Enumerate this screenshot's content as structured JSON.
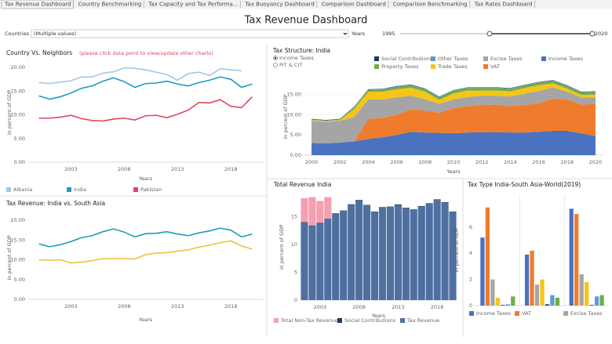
{
  "tabs": [
    "Tax Revenue Dashboard",
    "Country Benchmarking",
    "Tax Capacity and Tax Performa...",
    "Tax Buoyancy Dashboard",
    "Comparison Dashboard",
    "Comparison Benchmarking",
    "Tax Rates Dashboard"
  ],
  "header": {
    "title": "Tax Revenue Dashboard"
  },
  "filters": {
    "countries_label": "Countries",
    "countries_value": "(Multiple values)",
    "years_label": "Years",
    "years_range": [
      1995,
      2020
    ]
  },
  "chart_data": [
    {
      "type": "line",
      "title": "Country Vs. Neighbors",
      "subtitle": "(please click data point to view/update other charts)",
      "x": [
        2000,
        2001,
        2002,
        2003,
        2004,
        2005,
        2006,
        2007,
        2008,
        2009,
        2010,
        2011,
        2012,
        2013,
        2014,
        2015,
        2016,
        2017,
        2018,
        2019,
        2020
      ],
      "xlim": [
        1999,
        2021
      ],
      "xticks": [
        2003,
        2008,
        2013,
        2018
      ],
      "ylim": [
        0,
        21
      ],
      "yticks": [
        {
          "value": 0,
          "label": "0.00"
        },
        {
          "value": 5,
          "label": "5.00"
        },
        {
          "value": 10,
          "label": "10.00"
        },
        {
          "value": 15,
          "label": "15.00"
        },
        {
          "value": 20,
          "label": "20.00"
        }
      ],
      "xlabel": "Years",
      "ylabel": "in percent of GDP",
      "series": [
        {
          "name": "Albania",
          "color": "#9ecae1",
          "values": [
            16.8,
            16.6,
            16.9,
            17.2,
            18.0,
            18.0,
            18.8,
            19.1,
            19.9,
            19.8,
            19.5,
            19.0,
            18.5,
            17.3,
            18.7,
            19.0,
            18.3,
            19.7,
            19.5,
            19.3,
            null
          ]
        },
        {
          "name": "India",
          "color": "#1f9bbf",
          "values": [
            14.0,
            13.3,
            13.8,
            14.6,
            15.6,
            16.1,
            17.1,
            17.8,
            17.0,
            15.8,
            16.6,
            16.7,
            17.1,
            16.5,
            16.1,
            16.8,
            17.3,
            18.0,
            17.5,
            15.8,
            16.5
          ]
        },
        {
          "name": "Pakistan",
          "color": "#e0445e",
          "values": [
            9.3,
            9.3,
            9.5,
            9.9,
            9.2,
            8.8,
            8.7,
            9.1,
            9.3,
            8.9,
            9.8,
            9.9,
            9.4,
            10.1,
            11.0,
            12.6,
            12.5,
            13.2,
            11.8,
            11.5,
            13.8
          ]
        }
      ]
    },
    {
      "type": "line",
      "title": "Tax Revenue: India vs. South Asia",
      "x": [
        2000,
        2001,
        2002,
        2003,
        2004,
        2005,
        2006,
        2007,
        2008,
        2009,
        2010,
        2011,
        2012,
        2013,
        2014,
        2015,
        2016,
        2017,
        2018,
        2019,
        2020
      ],
      "xlim": [
        1999,
        2021
      ],
      "xticks": [
        2003,
        2008,
        2013,
        2018
      ],
      "ylim": [
        0,
        21
      ],
      "yticks": [
        {
          "value": 0,
          "label": "0.00"
        },
        {
          "value": 5,
          "label": "5.00"
        },
        {
          "value": 10,
          "label": "10.00"
        },
        {
          "value": 15,
          "label": "15.00"
        },
        {
          "value": 20,
          "label": "20.00"
        }
      ],
      "xlabel": "Years",
      "ylabel": "in percent of GDP",
      "series": [
        {
          "color": "#1f9bbf",
          "values": [
            14.0,
            13.3,
            13.8,
            14.6,
            15.6,
            16.1,
            17.1,
            17.8,
            17.0,
            15.8,
            16.6,
            16.7,
            17.1,
            16.5,
            16.1,
            16.8,
            17.3,
            18.0,
            17.5,
            15.8,
            16.5
          ]
        },
        {
          "color": "#f0c040",
          "values": [
            10.0,
            9.9,
            10.0,
            9.2,
            9.4,
            9.8,
            10.3,
            10.3,
            10.3,
            10.2,
            11.3,
            11.7,
            11.8,
            12.2,
            12.5,
            13.2,
            13.7,
            14.3,
            14.8,
            13.5,
            12.7
          ]
        }
      ]
    },
    {
      "type": "area",
      "title": "Tax Structure: India",
      "options": [
        "Income Taxes",
        "PIT & CIT"
      ],
      "x": [
        2000,
        2001,
        2002,
        2003,
        2004,
        2005,
        2006,
        2007,
        2008,
        2009,
        2010,
        2011,
        2012,
        2013,
        2014,
        2015,
        2016,
        2017,
        2018,
        2019,
        2020
      ],
      "xlim": [
        1999.5,
        2020.5
      ],
      "xticks": [
        2000,
        2002,
        2004,
        2006,
        2008,
        2010,
        2012,
        2014,
        2016,
        2018,
        2020
      ],
      "ylim": [
        0,
        19
      ],
      "yticks": [
        {
          "value": 0,
          "label": "0.00"
        },
        {
          "value": 5,
          "label": "5.00"
        },
        {
          "value": 10,
          "label": "10.00"
        },
        {
          "value": 15,
          "label": "15.00"
        }
      ],
      "xlabel": "Years",
      "ylabel": "in percent of GDP",
      "grid": true,
      "series": [
        {
          "name": "Income Taxes",
          "color": "#4a72c0",
          "values": [
            3.0,
            2.9,
            3.1,
            3.4,
            4.0,
            4.4,
            5.0,
            5.8,
            5.6,
            5.5,
            5.4,
            5.6,
            5.7,
            5.7,
            5.6,
            5.6,
            5.8,
            6.0,
            6.0,
            5.4,
            4.7
          ]
        },
        {
          "name": "VAT",
          "color": "#ef7c2d",
          "values": [
            0,
            0,
            0,
            0,
            5.0,
            4.8,
            5.0,
            5.6,
            5.4,
            5.0,
            6.2,
            6.5,
            6.7,
            6.8,
            6.5,
            6.8,
            7.0,
            8.0,
            7.8,
            7.1,
            8.0
          ]
        },
        {
          "name": "Excise Taxes",
          "color": "#a5a5a5",
          "values": [
            5.5,
            5.3,
            5.4,
            6.0,
            4.8,
            4.6,
            4.3,
            3.3,
            2.8,
            2.2,
            2.2,
            2.3,
            2.3,
            2.2,
            2.4,
            2.8,
            3.1,
            2.8,
            1.9,
            1.8,
            1.5
          ]
        },
        {
          "name": "Trade Taxes",
          "color": "#f5c518",
          "values": [
            0.2,
            0.2,
            0.2,
            2.0,
            1.9,
            1.9,
            2.0,
            2.0,
            1.9,
            1.0,
            1.5,
            1.6,
            1.3,
            1.3,
            1.3,
            1.4,
            1.4,
            1.0,
            0.8,
            0.6,
            0.8
          ]
        },
        {
          "name": "Property Taxes",
          "color": "#70ad47",
          "values": [
            0.1,
            0.1,
            0.1,
            0.4,
            0.4,
            0.5,
            0.6,
            0.6,
            0.6,
            0.6,
            0.6,
            0.6,
            0.6,
            0.6,
            0.6,
            0.6,
            0.6,
            0.6,
            0.6,
            0.6,
            0.6
          ]
        },
        {
          "name": "Other Taxes",
          "color": "#5b9bd5",
          "values": [
            0.1,
            0.1,
            0.1,
            0.1,
            0.1,
            0.1,
            0.1,
            0.1,
            0.1,
            0.1,
            0.1,
            0.1,
            0.1,
            0.1,
            0.1,
            0.1,
            0.1,
            0.1,
            0.1,
            0.1,
            0.1
          ]
        },
        {
          "name": "Social Contributions",
          "color": "#1f3864",
          "values": [
            0.1,
            0.1,
            0.1,
            0.1,
            0.1,
            0.1,
            0.1,
            0.1,
            0.1,
            0.1,
            0.1,
            0.1,
            0.1,
            0.1,
            0.1,
            0.1,
            0.1,
            0.1,
            0.1,
            0.1,
            0.1
          ]
        }
      ]
    },
    {
      "type": "bar",
      "stacked": true,
      "title": "Total Revenue India",
      "x": [
        2001,
        2002,
        2003,
        2004,
        2005,
        2006,
        2007,
        2008,
        2009,
        2010,
        2011,
        2012,
        2013,
        2014,
        2015,
        2016,
        2017,
        2018,
        2019,
        2020
      ],
      "xlim": [
        2000.5,
        2020.5
      ],
      "xticks": [
        2003,
        2008,
        2013,
        2018
      ],
      "ylim": [
        0,
        19
      ],
      "yticks": [
        0,
        5,
        10,
        15
      ],
      "xlabel": "Years",
      "ylabel": "in percent of GDP",
      "series": [
        {
          "name": "Total Non-Tax Revenue",
          "color": "#f4a0b0",
          "values": [
            4.3,
            5.1,
            3.9,
            3.9,
            0,
            0,
            0,
            0,
            0,
            0,
            0,
            0,
            0,
            0,
            0,
            0,
            0,
            0,
            0,
            0
          ]
        },
        {
          "name": "Social Contributions",
          "color": "#1f3864",
          "values": [
            0.1,
            0.1,
            0.1,
            0.1,
            0.1,
            0.1,
            0.1,
            0.1,
            0.1,
            0.1,
            0.1,
            0.1,
            0.1,
            0.1,
            0.1,
            0.1,
            0.1,
            0.1,
            0.1,
            0.1
          ]
        },
        {
          "name": "Tax Revenue",
          "color": "#4e6fa0",
          "values": [
            13.9,
            13.3,
            13.8,
            14.5,
            15.5,
            16.0,
            17.1,
            17.9,
            17.0,
            15.8,
            16.6,
            16.7,
            17.1,
            16.5,
            16.2,
            16.8,
            17.3,
            18.0,
            17.5,
            15.8
          ]
        }
      ]
    },
    {
      "type": "bar",
      "title": "Tax Type India-South Asia-World(2019)",
      "categories": [
        null,
        null,
        null
      ],
      "ylim": [
        0,
        8.5
      ],
      "yticks": [
        0,
        2,
        4,
        6
      ],
      "ylabel": "in percent of GDP",
      "series": [
        {
          "name": "Income Taxes",
          "color": "#4a72c0",
          "values": [
            5.2,
            3.9,
            7.4
          ]
        },
        {
          "name": "VAT",
          "color": "#ef7c2d",
          "values": [
            7.5,
            4.2,
            7.0
          ]
        },
        {
          "name": "Excise Taxes",
          "color": "#a5a5a5",
          "values": [
            2.0,
            1.6,
            2.4
          ]
        },
        {
          "color": "#f5c518",
          "values": [
            0.6,
            2.0,
            1.8
          ]
        },
        {
          "color": "#1f3864",
          "values": [
            0.05,
            0.1,
            0.05
          ]
        },
        {
          "color": "#5b9bd5",
          "values": [
            0.1,
            0.8,
            0.7
          ]
        },
        {
          "color": "#70ad47",
          "values": [
            0.7,
            0.6,
            0.8
          ]
        }
      ]
    }
  ]
}
